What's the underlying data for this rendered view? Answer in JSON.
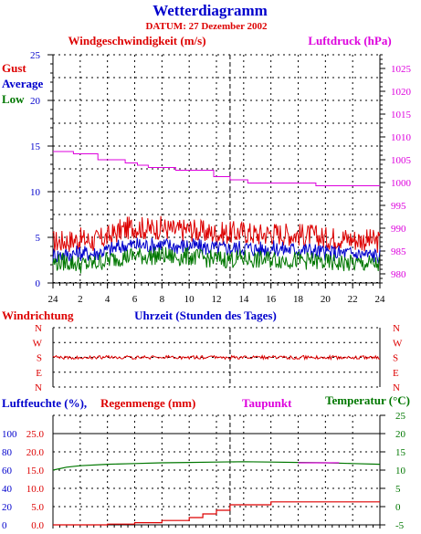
{
  "title": "Wetterdiagramm",
  "subtitle": "DATUM: 27 Dezember 2002",
  "colors": {
    "red": "#dd0000",
    "blue": "#0000cc",
    "green": "#007700",
    "magenta": "#dd00dd",
    "grid": "#000000"
  },
  "chart_data": [
    {
      "type": "line",
      "panel": "wind_pressure",
      "left_title": "Windgeschwindigkeit (m/s)",
      "right_title": "Luftdruck (hPa)",
      "legend": [
        "Gust",
        "Average",
        "Low"
      ],
      "xlabel": "Uhrzeit (Stunden des Tages)",
      "x_ticks": [
        "24",
        "2",
        "4",
        "6",
        "8",
        "10",
        "12",
        "14",
        "16",
        "18",
        "20",
        "22",
        "24"
      ],
      "x_range_hours": [
        0,
        24
      ],
      "ylim_left": [
        0,
        25
      ],
      "y_ticks_left": [
        "0",
        "5",
        "10",
        "15",
        "20",
        "25"
      ],
      "ylim_right": [
        978,
        1028
      ],
      "y_ticks_right": [
        "980",
        "985",
        "990",
        "995",
        "1000",
        "1005",
        "1010",
        "1015",
        "1020",
        "1025"
      ],
      "series": [
        {
          "name": "Gust",
          "axis": "left",
          "color": "#dd0000",
          "x": [
            0,
            1,
            2,
            3,
            4,
            5,
            6,
            7,
            8,
            9,
            10,
            11,
            12,
            13,
            14,
            15,
            16,
            17,
            18,
            19,
            20,
            21,
            22,
            23,
            24
          ],
          "y": [
            4.5,
            4.6,
            4.8,
            4.6,
            5.0,
            5.8,
            6.2,
            5.9,
            6.1,
            5.7,
            5.9,
            5.6,
            5.4,
            5.5,
            5.6,
            5.3,
            5.5,
            5.4,
            5.3,
            5.2,
            4.9,
            5.0,
            4.8,
            4.7,
            4.5
          ]
        },
        {
          "name": "Average",
          "axis": "left",
          "color": "#0000cc",
          "x": [
            0,
            1,
            2,
            3,
            4,
            5,
            6,
            7,
            8,
            9,
            10,
            11,
            12,
            13,
            14,
            15,
            16,
            17,
            18,
            19,
            20,
            21,
            22,
            23,
            24
          ],
          "y": [
            3.0,
            3.1,
            3.3,
            3.2,
            3.6,
            4.0,
            4.2,
            4.1,
            4.2,
            4.0,
            4.1,
            3.9,
            3.8,
            3.8,
            3.9,
            3.7,
            3.8,
            3.7,
            3.7,
            3.6,
            3.3,
            3.3,
            3.2,
            3.1,
            3.0
          ]
        },
        {
          "name": "Low",
          "axis": "left",
          "color": "#007700",
          "x": [
            0,
            1,
            2,
            3,
            4,
            5,
            6,
            7,
            8,
            9,
            10,
            11,
            12,
            13,
            14,
            15,
            16,
            17,
            18,
            19,
            20,
            21,
            22,
            23,
            24
          ],
          "y": [
            2.2,
            2.3,
            2.0,
            2.1,
            2.5,
            2.8,
            3.0,
            2.9,
            3.0,
            2.8,
            2.9,
            2.7,
            2.6,
            2.6,
            2.7,
            2.5,
            2.6,
            2.5,
            2.5,
            2.4,
            2.2,
            2.2,
            2.1,
            2.1,
            2.0
          ]
        },
        {
          "name": "Luftdruck",
          "axis": "right",
          "color": "#dd00dd",
          "x": [
            0,
            1.5,
            1.5,
            3.3,
            3.3,
            5.3,
            5.3,
            6.2,
            6.2,
            7,
            7,
            9,
            9,
            11.8,
            11.8,
            13,
            13,
            14.3,
            14.3,
            19.3,
            19.3,
            24
          ],
          "y": [
            1006.8,
            1006.8,
            1006.3,
            1006.3,
            1005.0,
            1005.0,
            1004.3,
            1004.3,
            1003.8,
            1003.8,
            1003.3,
            1003.3,
            1002.7,
            1002.7,
            1001.3,
            1001.3,
            1000.6,
            1000.6,
            999.9,
            999.9,
            999.3,
            999.3
          ]
        }
      ]
    },
    {
      "type": "line",
      "panel": "wind_direction",
      "title": "Windrichtung",
      "xlabel": "Uhrzeit (Stunden des Tages)",
      "y_ticks": [
        "N",
        "W",
        "S",
        "E",
        "N"
      ],
      "series": [
        {
          "name": "Windrichtung",
          "color": "#dd0000",
          "x": [
            0,
            2,
            4,
            6,
            8,
            10,
            12,
            14,
            16,
            18,
            20,
            22,
            24
          ],
          "y": [
            "S",
            "S",
            "S",
            "S",
            "S",
            "S",
            "S",
            "S",
            "S",
            "S",
            "S",
            "S",
            "S"
          ]
        }
      ]
    },
    {
      "type": "line",
      "panel": "humidity_rain_temp",
      "left_title_1": "Luftfeuchte (%),",
      "left_title_2": "Regenmenge (mm)",
      "right_title_1": "Taupunkt",
      "right_title_2": "Temperatur (°C)",
      "y_ticks_humidity": [
        "0",
        "20",
        "40",
        "60",
        "80",
        "100"
      ],
      "ylim_humidity": [
        0,
        100
      ],
      "y_ticks_rain": [
        "0.0",
        "5.0",
        "10.0",
        "15.0",
        "20.0",
        "25.0"
      ],
      "ylim_rain": [
        0,
        25
      ],
      "y_ticks_temp": [
        "-5",
        "0",
        "5",
        "10",
        "15",
        "20",
        "25"
      ],
      "ylim_temp": [
        -5,
        25
      ],
      "series": [
        {
          "name": "Regenmenge",
          "axis": "rain",
          "color": "#dd0000",
          "x": [
            0,
            2,
            4,
            4,
            6,
            6,
            8,
            8,
            10,
            10,
            11,
            11,
            12,
            12,
            13,
            13,
            16,
            16,
            24
          ],
          "y": [
            0,
            0,
            0,
            0.2,
            0.2,
            0.6,
            0.6,
            1.2,
            1.2,
            2.0,
            2.0,
            3.0,
            3.0,
            4.0,
            4.0,
            5.5,
            5.5,
            6.3,
            6.3
          ]
        },
        {
          "name": "Temperatur",
          "axis": "temp",
          "color": "#007700",
          "x": [
            0,
            1,
            2,
            4,
            6,
            8,
            10,
            12,
            14,
            16,
            18,
            20,
            22,
            24
          ],
          "y": [
            10.0,
            10.8,
            11.2,
            11.6,
            11.8,
            12.0,
            12.1,
            12.2,
            12.3,
            12.2,
            12.1,
            12.0,
            11.8,
            11.6
          ]
        },
        {
          "name": "Taupunkt",
          "axis": "temp",
          "color": "#dd00dd",
          "x": [
            18,
            19,
            20,
            21
          ],
          "y": [
            12.0,
            12.0,
            12.0,
            12.0
          ]
        }
      ]
    }
  ]
}
